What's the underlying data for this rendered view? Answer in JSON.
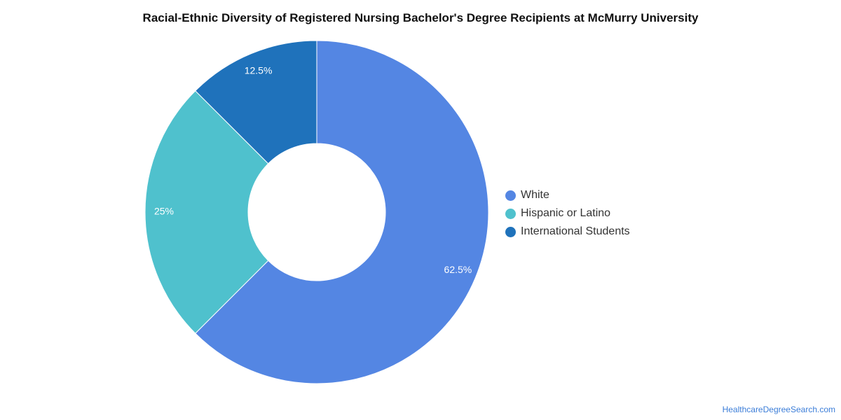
{
  "chart_data": {
    "type": "pie",
    "title": "Racial-Ethnic Diversity of Registered Nursing Bachelor's Degree Recipients at McMurry University",
    "donut": true,
    "legend_position": "right",
    "slices": [
      {
        "name": "White",
        "value": 62.5,
        "label": "62.5%",
        "color": "#5486e3"
      },
      {
        "name": "Hispanic or Latino",
        "value": 25,
        "label": "25%",
        "color": "#4fc1cd"
      },
      {
        "name": "International Students",
        "value": 12.5,
        "label": "12.5%",
        "color": "#1f72bb"
      }
    ]
  },
  "source_text": "HealthcareDegreeSearch.com"
}
